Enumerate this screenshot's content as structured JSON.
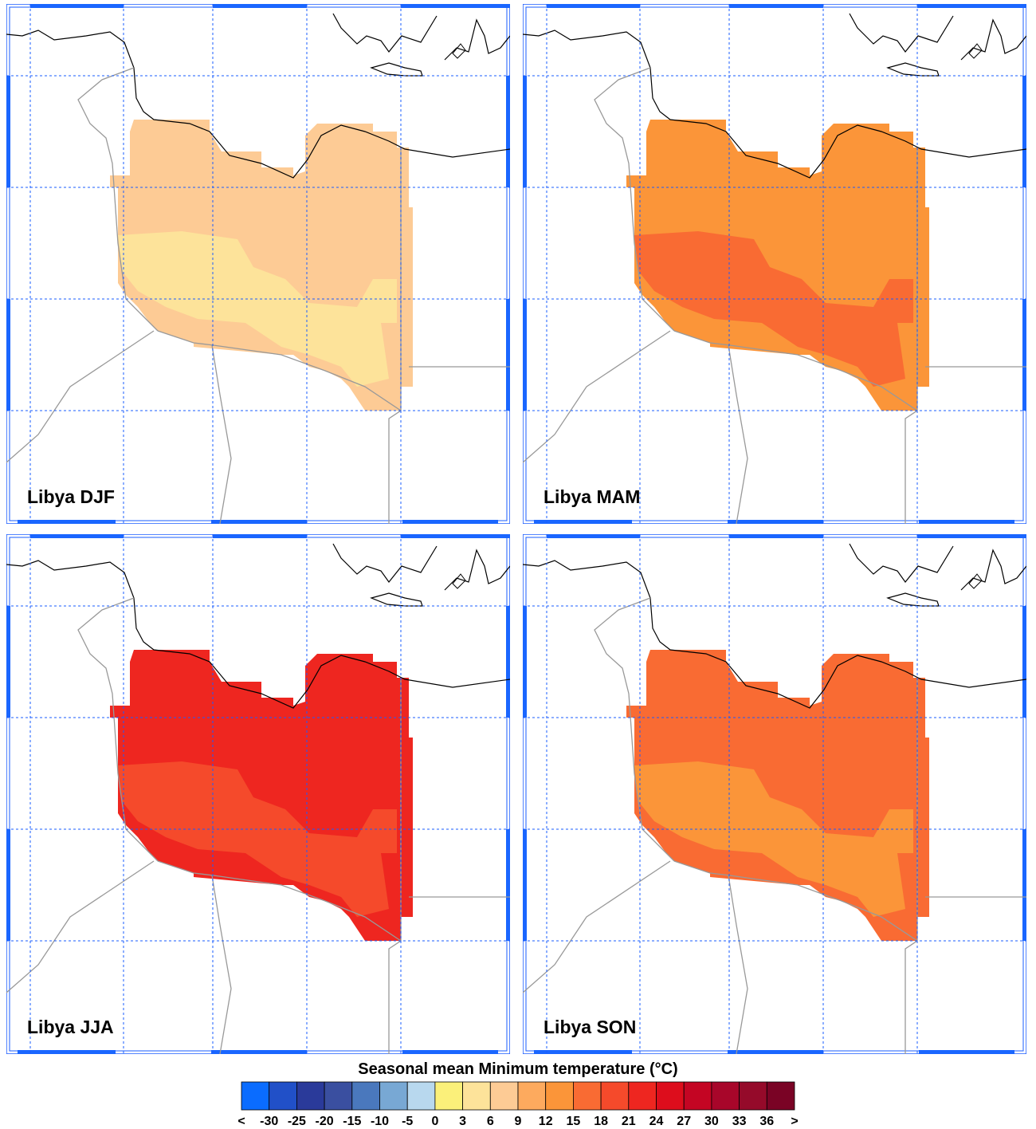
{
  "panels": [
    {
      "label": "Libya DJF",
      "color": "#fdcb95",
      "accent": "#fde39a"
    },
    {
      "label": "Libya MAM",
      "color": "#fb9539",
      "accent": "#f96b33"
    },
    {
      "label": "Libya JJA",
      "color": "#ee2620",
      "accent": "#f54a2b"
    },
    {
      "label": "Libya SON",
      "color": "#f96b33",
      "accent": "#fb9539"
    }
  ],
  "colorbar": {
    "title": "Seasonal mean Minimum temperature (°C)",
    "colors": [
      "#0a6cff",
      "#2150c8",
      "#2a3a9a",
      "#3a4fa0",
      "#4a78bd",
      "#78a8d4",
      "#b8d8ee",
      "#fbf07a",
      "#fde39a",
      "#fdcb95",
      "#fdaa5e",
      "#fb9539",
      "#f96b33",
      "#f54a2b",
      "#ee2620",
      "#dd0d1c",
      "#c40523",
      "#a8062a",
      "#950a2a",
      "#7a0325"
    ],
    "labels": [
      "<",
      -30,
      -25,
      -20,
      -15,
      -10,
      -5,
      0,
      3,
      6,
      9,
      12,
      15,
      18,
      21,
      24,
      27,
      30,
      33,
      36,
      ">"
    ]
  }
}
